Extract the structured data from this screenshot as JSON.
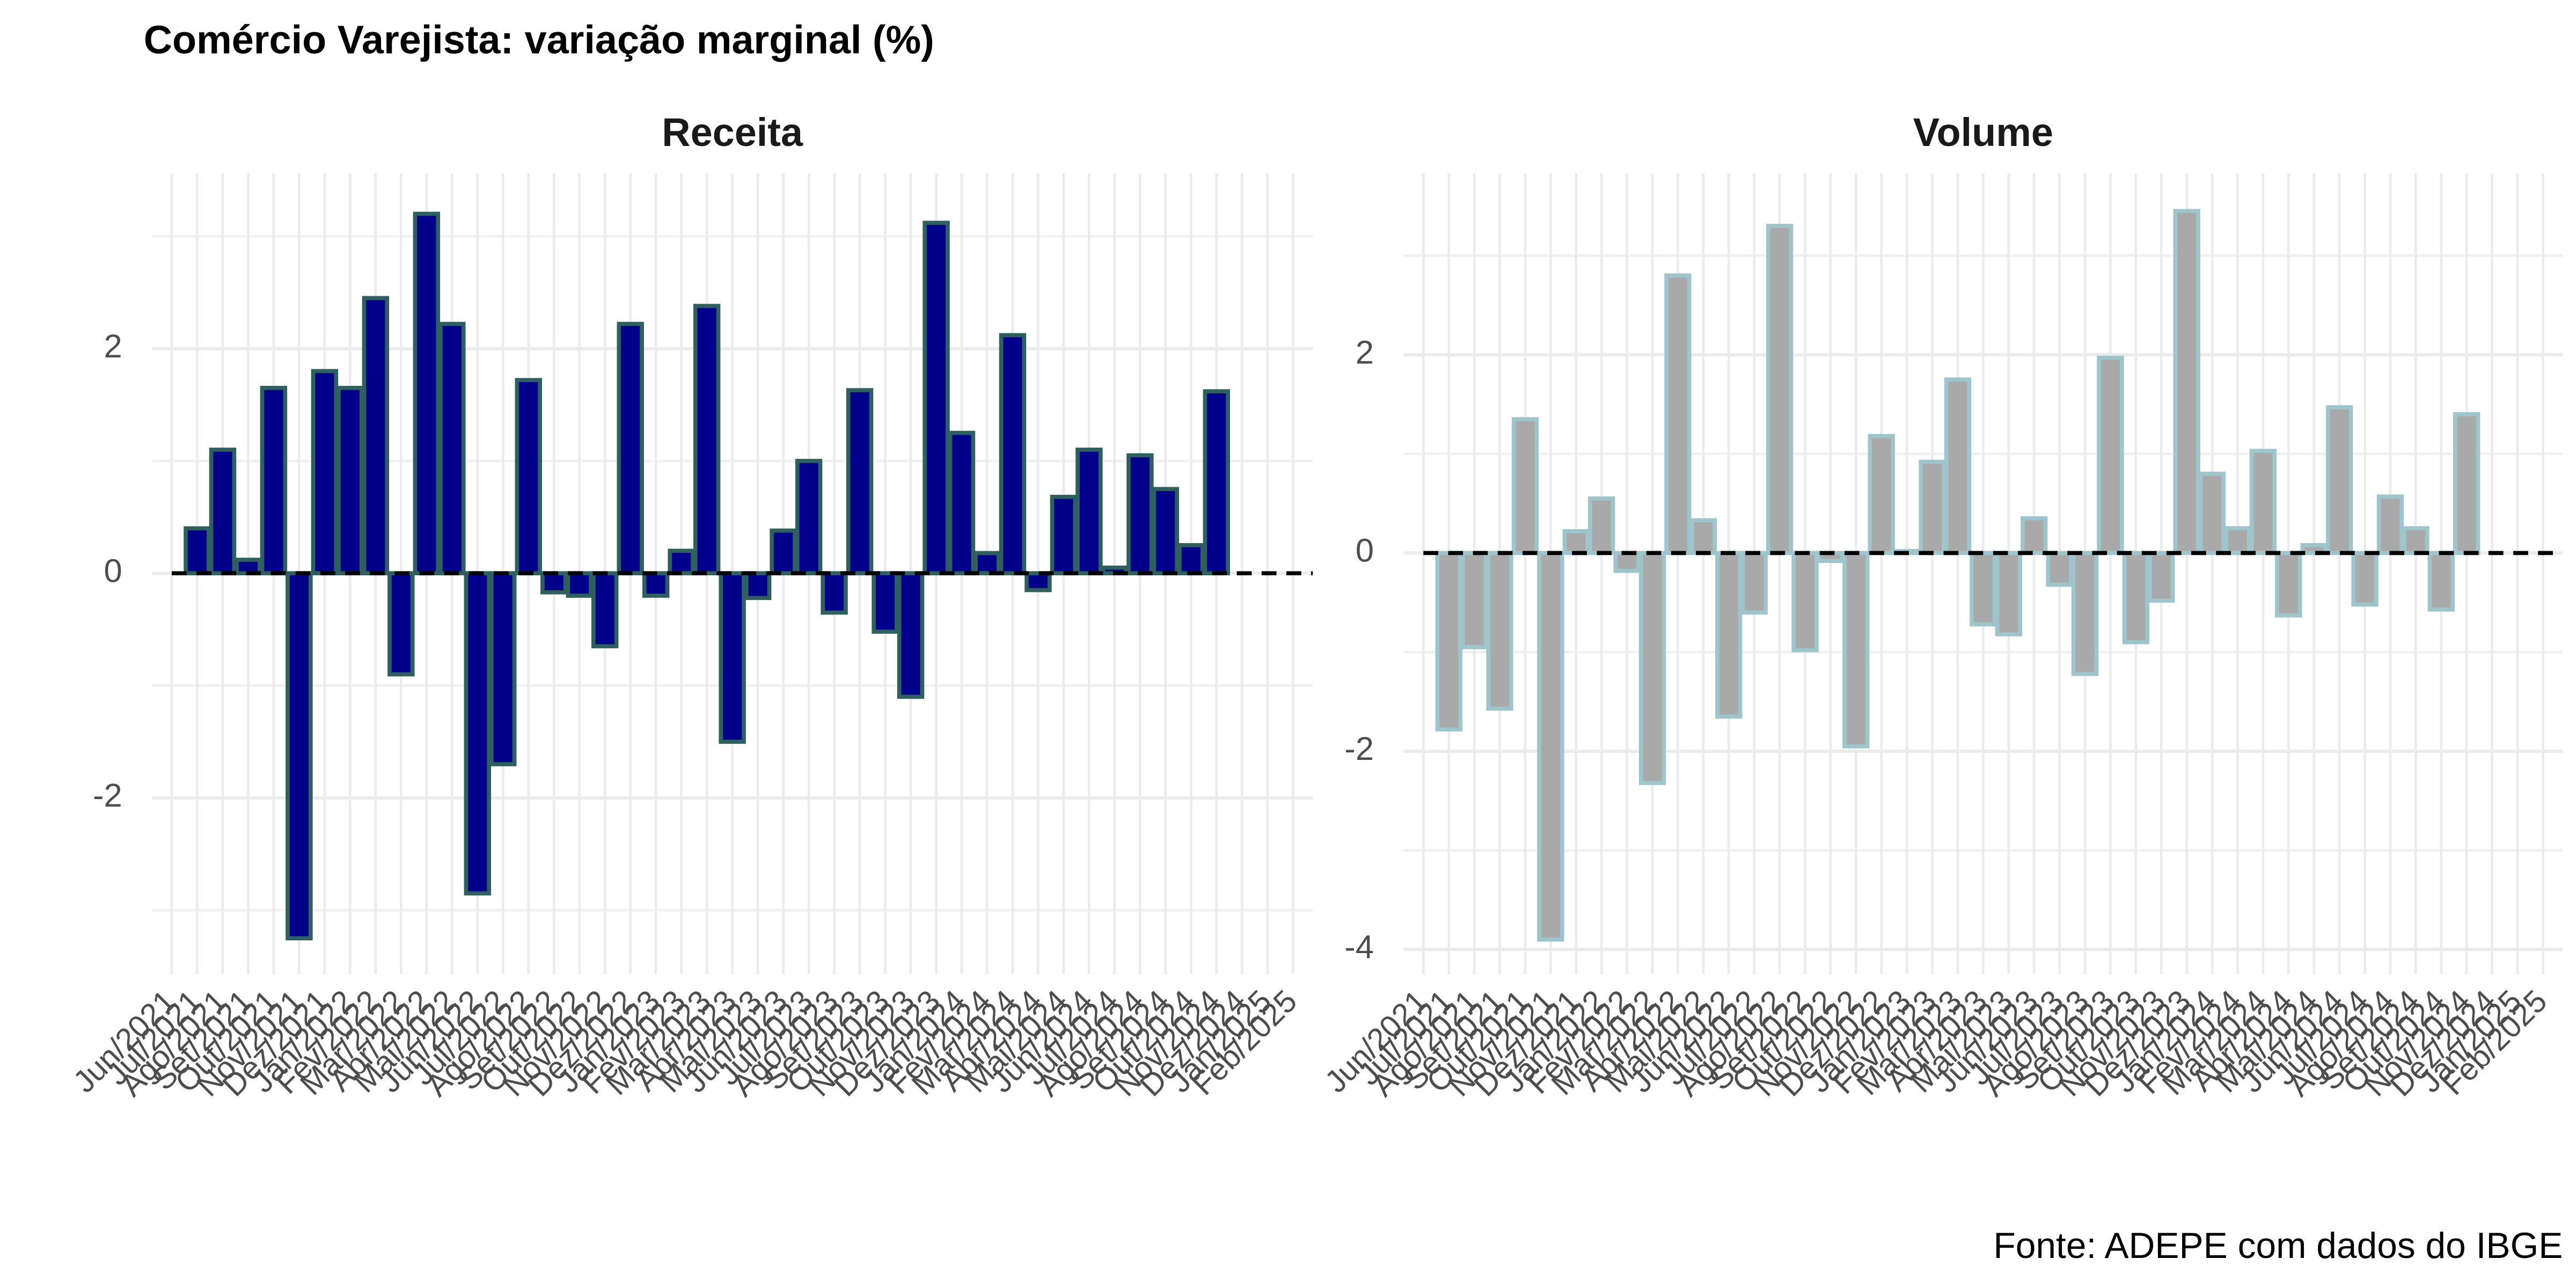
{
  "title": "Comércio Varejista: variação marginal (%)",
  "caption": "Fonte: ADEPE com dados do IBGE",
  "chart_data": [
    {
      "type": "bar",
      "title": "Receita",
      "categories": [
        "Jun/2021",
        "Jul/2021",
        "Ago/2021",
        "Set/2021",
        "Out/2021",
        "Nov/2021",
        "Dez/2021",
        "Jan/2022",
        "Fev/2022",
        "Mar/2022",
        "Abr/2022",
        "Mai/2022",
        "Jun/2022",
        "Jul/2022",
        "Ago/2022",
        "Set/2022",
        "Out/2022",
        "Nov/2022",
        "Dez/2022",
        "Jan/2023",
        "Fev/2023",
        "Mar/2023",
        "Abr/2023",
        "Mai/2023",
        "Jun/2023",
        "Jul/2023",
        "Ago/2023",
        "Set/2023",
        "Out/2023",
        "Nov/2023",
        "Dez/2023",
        "Jan/2024",
        "Fev/2024",
        "Mar/2024",
        "Abr/2024",
        "Mai/2024",
        "Jun/2024",
        "Jul/2024",
        "Ago/2024",
        "Set/2024",
        "Out/2024",
        "Nov/2024",
        "Dez/2024",
        "Jan/2025",
        "Feb/2025"
      ],
      "values": [
        null,
        0.4,
        1.1,
        0.12,
        1.65,
        -3.25,
        1.8,
        1.65,
        2.45,
        -0.9,
        3.2,
        2.22,
        -2.85,
        -1.7,
        1.72,
        -0.17,
        -0.2,
        -0.65,
        2.22,
        -0.2,
        0.2,
        2.38,
        -1.5,
        -0.22,
        0.38,
        1.0,
        -0.35,
        1.63,
        -0.52,
        -1.1,
        3.12,
        1.25,
        0.18,
        2.12,
        -0.15,
        0.68,
        1.1,
        0.05,
        1.05,
        0.75,
        0.25,
        1.62,
        null,
        null,
        null
      ],
      "color": "#00008b",
      "edge_color": "#2f5f5f",
      "ylim": [
        -3.57,
        3.56
      ],
      "yticks": [
        -2,
        0,
        2
      ],
      "hline": 0,
      "grid": true
    },
    {
      "type": "bar",
      "title": "Volume",
      "categories": [
        "Jun/2021",
        "Jul/2021",
        "Ago/2021",
        "Set/2021",
        "Out/2021",
        "Nov/2021",
        "Dez/2021",
        "Jan/2022",
        "Fev/2022",
        "Mar/2022",
        "Abr/2022",
        "Mai/2022",
        "Jun/2022",
        "Jul/2022",
        "Ago/2022",
        "Set/2022",
        "Out/2022",
        "Nov/2022",
        "Dez/2022",
        "Jan/2023",
        "Fev/2023",
        "Mar/2023",
        "Abr/2023",
        "Mai/2023",
        "Jun/2023",
        "Jul/2023",
        "Ago/2023",
        "Set/2023",
        "Out/2023",
        "Nov/2023",
        "Dez/2023",
        "Jan/2024",
        "Fev/2024",
        "Mar/2024",
        "Abr/2024",
        "Mai/2024",
        "Jun/2024",
        "Jul/2024",
        "Ago/2024",
        "Set/2024",
        "Out/2024",
        "Nov/2024",
        "Dez/2024",
        "Jan/2025",
        "Feb/2025"
      ],
      "values": [
        null,
        -1.78,
        -0.95,
        -1.57,
        1.35,
        -3.9,
        0.22,
        0.55,
        -0.18,
        -2.32,
        2.8,
        0.33,
        -1.65,
        -0.6,
        3.3,
        -0.98,
        -0.08,
        -1.95,
        1.18,
        0.02,
        0.92,
        1.75,
        -0.72,
        -0.82,
        0.35,
        -0.32,
        -1.22,
        1.97,
        -0.9,
        -0.48,
        3.45,
        0.8,
        0.25,
        1.03,
        -0.63,
        0.08,
        1.47,
        -0.52,
        0.57,
        0.25,
        -0.57,
        1.4,
        null,
        null,
        null
      ],
      "color": "#a9a9a9",
      "edge_color": "#9ec5cc",
      "ylim": [
        -4.25,
        3.83
      ],
      "yticks": [
        -4,
        -2,
        0,
        2
      ],
      "hline": 0,
      "grid": true
    }
  ]
}
